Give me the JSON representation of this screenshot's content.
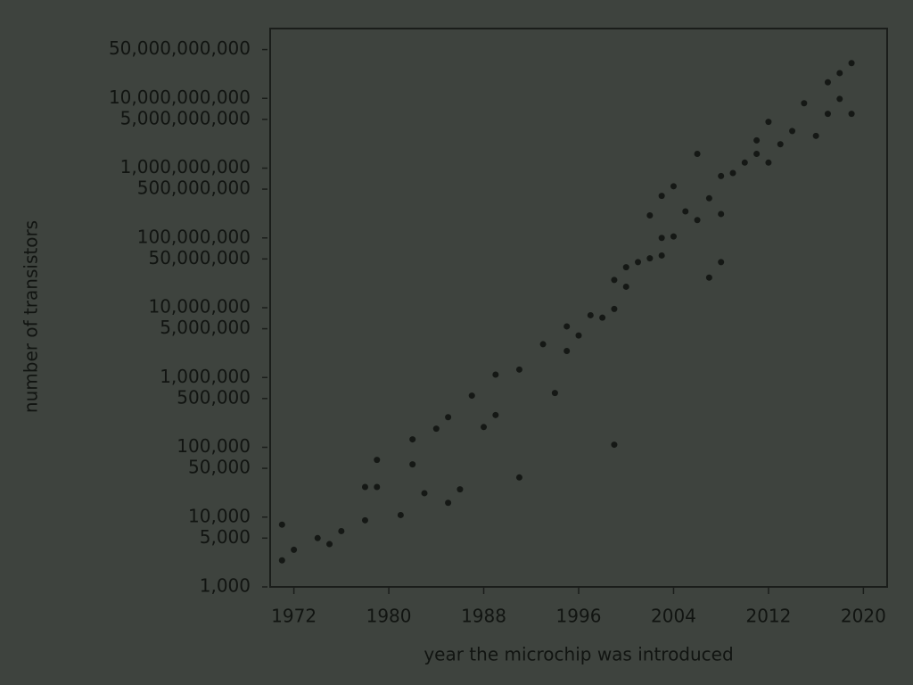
{
  "chart_data": {
    "type": "scatter",
    "x_label": "year the microchip was introduced",
    "y_label": "number of transistors",
    "log_y": true,
    "color": "#151815",
    "xlim": [
      1970,
      2022
    ],
    "xticks": [
      1972,
      1980,
      1988,
      1996,
      2004,
      2012,
      2020
    ],
    "ylim": [
      1000,
      100000000000
    ],
    "yticks": [
      {
        "value": 1000,
        "label": "1,000"
      },
      {
        "value": 5000,
        "label": "5,000"
      },
      {
        "value": 10000,
        "label": "10,000"
      },
      {
        "value": 50000,
        "label": "50,000"
      },
      {
        "value": 100000,
        "label": "100,000"
      },
      {
        "value": 500000,
        "label": "500,000"
      },
      {
        "value": 1000000,
        "label": "1,000,000"
      },
      {
        "value": 5000000,
        "label": "5,000,000"
      },
      {
        "value": 10000000,
        "label": "10,000,000"
      },
      {
        "value": 50000000,
        "label": "50,000,000"
      },
      {
        "value": 100000000,
        "label": "100,000,000"
      },
      {
        "value": 500000000,
        "label": "500,000,000"
      },
      {
        "value": 1000000000,
        "label": "1,000,000,000"
      },
      {
        "value": 5000000000,
        "label": "5,000,000,000"
      },
      {
        "value": 10000000000,
        "label": "10,000,000,000"
      },
      {
        "value": 50000000000,
        "label": "50,000,000,000"
      }
    ],
    "x": [
      1971,
      1971,
      1972,
      1974,
      1975,
      1976,
      1978,
      1978,
      1979,
      1979,
      1981,
      1982,
      1982,
      1983,
      1984,
      1985,
      1985,
      1986,
      1987,
      1988,
      1989,
      1989,
      1991,
      1991,
      1993,
      1994,
      1995,
      1995,
      1996,
      1997,
      1998,
      1999,
      1999,
      1999,
      2000,
      2000,
      2001,
      2002,
      2003,
      2002,
      2003,
      2004,
      2003,
      2004,
      2005,
      2006,
      2006,
      2007,
      2007,
      2008,
      2008,
      2008,
      2009,
      2010,
      2011,
      2011,
      2012,
      2012,
      2013,
      2014,
      2015,
      2016,
      2017,
      2017,
      2018,
      2019,
      2019,
      2018
    ],
    "values": [
      7800,
      2400,
      3400,
      5000,
      4100,
      6300,
      9000,
      27000,
      27000,
      66000,
      10700,
      57000,
      130000,
      22000,
      185000,
      270000,
      16000,
      25000,
      550000,
      195000,
      290000,
      1100000,
      37000,
      1300000,
      3000000,
      600000,
      5400000,
      2400000,
      4000000,
      7800000,
      7200000,
      9600000,
      109000,
      25000000,
      20000000,
      38000000,
      45000000,
      51000000,
      56000000,
      210000000,
      400000000,
      550000000,
      100000000,
      105000000,
      240000000,
      1600000000,
      180000000,
      370000000,
      27000000,
      45000000,
      220000000,
      770000000,
      850000000,
      1200000000,
      1600000000,
      2500000000,
      1200000000,
      4600000000,
      2200000000,
      3400000000,
      8500000000,
      2900000000,
      6000000000,
      17000000000,
      9800000000,
      32000000000,
      6000000000,
      23000000000
    ]
  }
}
